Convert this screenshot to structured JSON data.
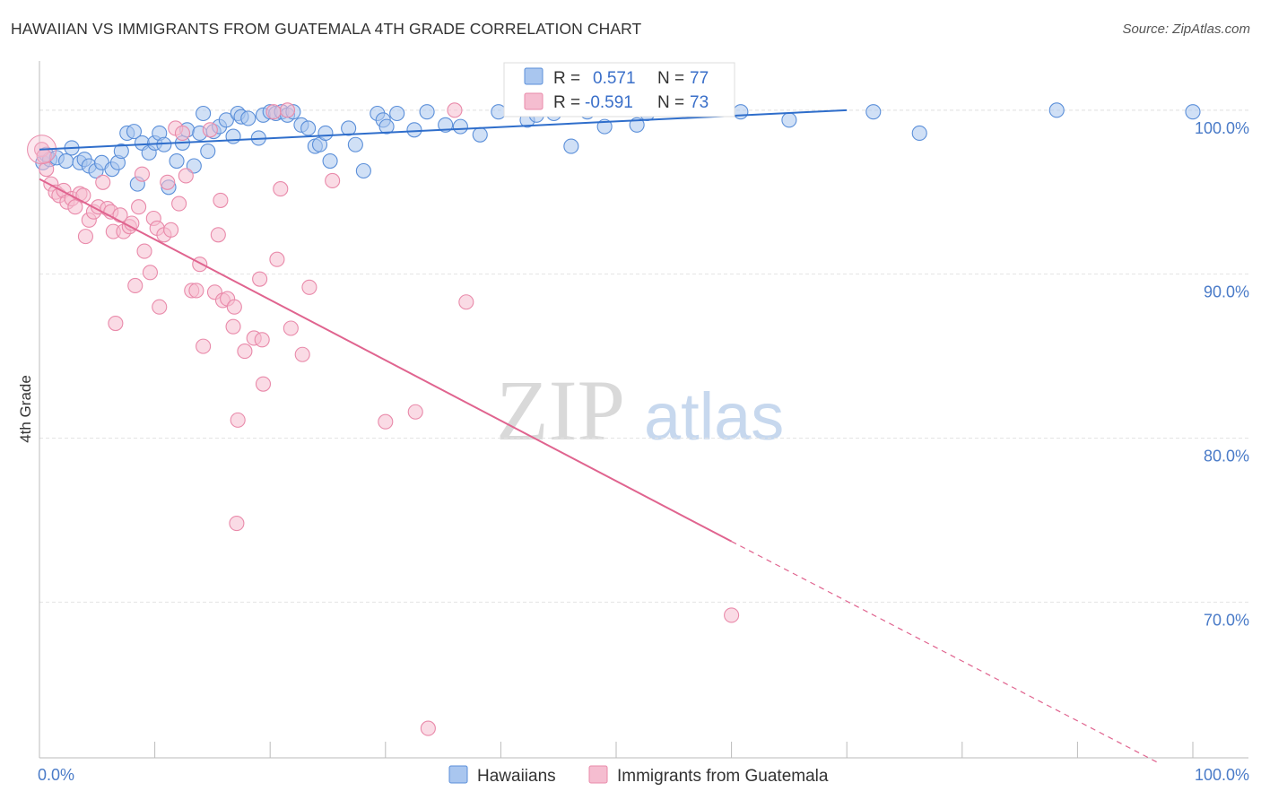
{
  "title": "HAWAIIAN VS IMMIGRANTS FROM GUATEMALA 4TH GRADE CORRELATION CHART",
  "source": "Source: ZipAtlas.com",
  "watermark": {
    "zip": "ZIP",
    "atlas": "atlas"
  },
  "colors": {
    "blue_fill": "#a9c6ef",
    "blue_stroke": "#5b8fd9",
    "blue_line": "#2f6ecb",
    "pink_fill": "#f5bdd0",
    "pink_stroke": "#e98aaa",
    "pink_line": "#e0648f",
    "tick_text": "#4a7bc8",
    "grid": "#e4e4e4"
  },
  "legend": {
    "rows": [
      {
        "r_label": "R =",
        "r_value": "0.571",
        "n_label": "N =",
        "n_value": "77"
      },
      {
        "r_label": "R =",
        "r_value": "-0.591",
        "n_label": "N =",
        "n_value": "73"
      }
    ]
  },
  "chart_data": {
    "type": "scatter",
    "xlabel": "",
    "ylabel": "4th Grade",
    "xlim": [
      0,
      100
    ],
    "ylim": [
      60.5,
      103
    ],
    "x_tick_labels": [
      "0.0%",
      "100.0%"
    ],
    "y_ticks": [
      100,
      90,
      80,
      70
    ],
    "y_tick_labels": [
      "100.0%",
      "90.0%",
      "80.0%",
      "70.0%"
    ],
    "grid": true,
    "legend_position": "top-center",
    "series": [
      {
        "name": "Hawaiians",
        "color": "blue",
        "regression": {
          "x0": 0,
          "y0": 97.6,
          "x1": 70,
          "y1": 100.0,
          "dashed_to": null
        },
        "points": [
          [
            0.3,
            96.8
          ],
          [
            0.6,
            97.3
          ],
          [
            0.9,
            97.0
          ],
          [
            1.5,
            97.1
          ],
          [
            2.3,
            96.9
          ],
          [
            2.8,
            97.7
          ],
          [
            3.5,
            96.8
          ],
          [
            3.9,
            97.0
          ],
          [
            4.3,
            96.6
          ],
          [
            4.9,
            96.3
          ],
          [
            5.4,
            96.8
          ],
          [
            6.3,
            96.4
          ],
          [
            6.8,
            96.8
          ],
          [
            7.1,
            97.5
          ],
          [
            7.6,
            98.6
          ],
          [
            8.2,
            98.7
          ],
          [
            8.5,
            95.5
          ],
          [
            8.9,
            98.0
          ],
          [
            9.5,
            97.4
          ],
          [
            10.0,
            98.0
          ],
          [
            10.4,
            98.6
          ],
          [
            10.8,
            97.9
          ],
          [
            11.2,
            95.3
          ],
          [
            11.9,
            96.9
          ],
          [
            12.4,
            98.0
          ],
          [
            12.8,
            98.8
          ],
          [
            13.4,
            96.6
          ],
          [
            13.9,
            98.6
          ],
          [
            14.2,
            99.8
          ],
          [
            14.6,
            97.5
          ],
          [
            15.1,
            98.7
          ],
          [
            15.6,
            99.0
          ],
          [
            16.2,
            99.4
          ],
          [
            16.8,
            98.4
          ],
          [
            17.2,
            99.8
          ],
          [
            17.5,
            99.6
          ],
          [
            18.1,
            99.5
          ],
          [
            19.0,
            98.3
          ],
          [
            19.4,
            99.7
          ],
          [
            20.0,
            99.9
          ],
          [
            20.5,
            99.8
          ],
          [
            21.0,
            99.9
          ],
          [
            21.5,
            99.7
          ],
          [
            22.0,
            99.9
          ],
          [
            22.7,
            99.1
          ],
          [
            23.3,
            98.9
          ],
          [
            23.9,
            97.8
          ],
          [
            24.3,
            97.9
          ],
          [
            24.8,
            98.6
          ],
          [
            25.2,
            96.9
          ],
          [
            26.8,
            98.9
          ],
          [
            27.4,
            97.9
          ],
          [
            28.1,
            96.3
          ],
          [
            29.3,
            99.8
          ],
          [
            29.8,
            99.4
          ],
          [
            30.1,
            99.0
          ],
          [
            31.0,
            99.8
          ],
          [
            32.5,
            98.8
          ],
          [
            33.6,
            99.9
          ],
          [
            35.2,
            99.1
          ],
          [
            36.5,
            99.0
          ],
          [
            38.2,
            98.5
          ],
          [
            39.8,
            99.9
          ],
          [
            42.3,
            99.4
          ],
          [
            43.1,
            99.7
          ],
          [
            44.6,
            99.8
          ],
          [
            46.1,
            97.8
          ],
          [
            47.5,
            99.9
          ],
          [
            49.0,
            99.0
          ],
          [
            51.8,
            99.1
          ],
          [
            52.7,
            99.8
          ],
          [
            60.8,
            99.9
          ],
          [
            65.0,
            99.4
          ],
          [
            72.3,
            99.9
          ],
          [
            76.3,
            98.6
          ],
          [
            88.2,
            100.0
          ],
          [
            100.0,
            99.9
          ]
        ]
      },
      {
        "name": "Immigrants from Guatemala",
        "color": "pink",
        "regression": {
          "x0": 0,
          "y0": 95.8,
          "x1": 60,
          "y1": 73.7,
          "dashed_to": {
            "x": 97,
            "y": 60.2
          }
        },
        "points": [
          [
            0.2,
            97.6
          ],
          [
            0.4,
            97.2
          ],
          [
            0.6,
            96.4
          ],
          [
            1.0,
            95.5
          ],
          [
            1.4,
            95.0
          ],
          [
            1.7,
            94.8
          ],
          [
            2.1,
            95.1
          ],
          [
            2.4,
            94.4
          ],
          [
            2.8,
            94.6
          ],
          [
            3.1,
            94.1
          ],
          [
            3.5,
            94.9
          ],
          [
            3.8,
            94.8
          ],
          [
            4.0,
            92.3
          ],
          [
            4.3,
            93.3
          ],
          [
            4.7,
            93.8
          ],
          [
            5.1,
            94.1
          ],
          [
            5.5,
            95.6
          ],
          [
            5.9,
            94.0
          ],
          [
            6.2,
            93.8
          ],
          [
            6.4,
            92.6
          ],
          [
            6.6,
            87.0
          ],
          [
            7.0,
            93.6
          ],
          [
            7.3,
            92.6
          ],
          [
            7.8,
            92.9
          ],
          [
            8.0,
            93.1
          ],
          [
            8.3,
            89.3
          ],
          [
            8.6,
            94.1
          ],
          [
            8.9,
            96.1
          ],
          [
            9.1,
            91.4
          ],
          [
            9.6,
            90.1
          ],
          [
            9.9,
            93.4
          ],
          [
            10.2,
            92.8
          ],
          [
            10.4,
            88.0
          ],
          [
            10.8,
            92.4
          ],
          [
            11.1,
            95.6
          ],
          [
            11.4,
            92.7
          ],
          [
            11.8,
            98.9
          ],
          [
            12.1,
            94.3
          ],
          [
            12.4,
            98.6
          ],
          [
            12.7,
            96.0
          ],
          [
            13.2,
            89.0
          ],
          [
            13.6,
            89.0
          ],
          [
            13.9,
            90.6
          ],
          [
            14.2,
            85.6
          ],
          [
            14.8,
            98.8
          ],
          [
            15.2,
            88.9
          ],
          [
            15.5,
            92.4
          ],
          [
            15.7,
            94.5
          ],
          [
            15.9,
            88.4
          ],
          [
            16.3,
            88.5
          ],
          [
            16.8,
            86.8
          ],
          [
            16.9,
            88.0
          ],
          [
            17.1,
            74.8
          ],
          [
            17.2,
            81.1
          ],
          [
            17.8,
            85.3
          ],
          [
            18.6,
            86.1
          ],
          [
            19.1,
            89.7
          ],
          [
            19.3,
            86.0
          ],
          [
            19.4,
            83.3
          ],
          [
            20.3,
            99.9
          ],
          [
            20.6,
            90.9
          ],
          [
            20.9,
            95.2
          ],
          [
            21.5,
            100.0
          ],
          [
            21.8,
            86.7
          ],
          [
            22.8,
            85.1
          ],
          [
            23.4,
            89.2
          ],
          [
            25.4,
            95.7
          ],
          [
            30.0,
            81.0
          ],
          [
            32.6,
            81.6
          ],
          [
            33.7,
            62.3
          ],
          [
            36.0,
            100.0
          ],
          [
            37.0,
            88.3
          ],
          [
            60.0,
            69.2
          ]
        ]
      }
    ]
  },
  "bottom_legend": {
    "items": [
      "Hawaiians",
      "Immigrants from Guatemala"
    ]
  }
}
